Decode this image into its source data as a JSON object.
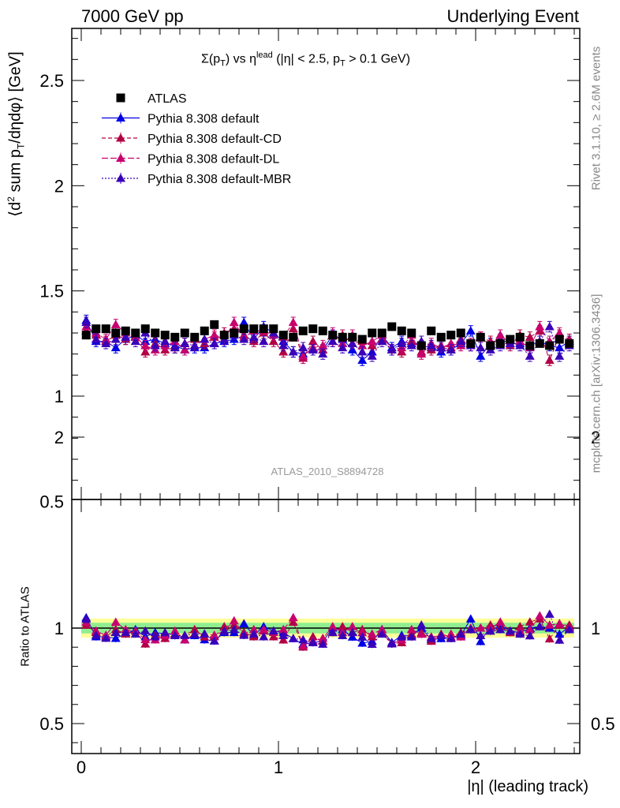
{
  "header": {
    "left": "7000 GeV pp",
    "right": "Underlying Event"
  },
  "side_labels": {
    "rivet": "Rivet 3.1.10, ≥ 2.6M events",
    "mcplots": "mcplots.cern.ch [arXiv:1306.3436]"
  },
  "colors": {
    "atlas": "#000000",
    "default": "#0000e6",
    "cd": "#b30045",
    "dl": "#c8006e",
    "mbr": "#3a00b8",
    "band_inner": "#90ee90",
    "band_outer": "#ffff99"
  },
  "chart_data": [
    {
      "type": "scatter",
      "panel": "main",
      "title": "Σ(p_T) vs η^lead (|η| < 2.5, p_T > 0.1 GeV)",
      "xlabel": "|η| (leading track)",
      "ylabel": "⟨d² sum p_T/dηdφ⟩ [GeV]",
      "watermark": "ATLAS_2010_S8894728",
      "xlim": [
        -0.05,
        2.55
      ],
      "ylim": [
        0.5,
        2.75
      ],
      "x_ticks": [
        "0",
        "1",
        "2"
      ],
      "y_ticks": [
        "0.5",
        "1",
        "1.5",
        "2",
        "2.5"
      ],
      "legend_position": "top-left",
      "x": [
        0.025,
        0.075,
        0.125,
        0.175,
        0.225,
        0.275,
        0.325,
        0.375,
        0.425,
        0.475,
        0.525,
        0.575,
        0.625,
        0.675,
        0.725,
        0.775,
        0.825,
        0.875,
        0.925,
        0.975,
        1.025,
        1.075,
        1.125,
        1.175,
        1.225,
        1.275,
        1.325,
        1.375,
        1.425,
        1.475,
        1.525,
        1.575,
        1.625,
        1.675,
        1.725,
        1.775,
        1.825,
        1.875,
        1.925,
        1.975,
        2.025,
        2.075,
        2.125,
        2.175,
        2.225,
        2.275,
        2.325,
        2.375,
        2.425,
        2.475
      ],
      "series": [
        {
          "name": "ATLAS",
          "style": "atlas",
          "values": [
            1.29,
            1.32,
            1.32,
            1.3,
            1.31,
            1.3,
            1.32,
            1.3,
            1.29,
            1.28,
            1.3,
            1.28,
            1.31,
            1.34,
            1.29,
            1.3,
            1.32,
            1.32,
            1.32,
            1.32,
            1.29,
            1.28,
            1.31,
            1.32,
            1.31,
            1.29,
            1.28,
            1.28,
            1.27,
            1.3,
            1.3,
            1.33,
            1.31,
            1.3,
            1.24,
            1.31,
            1.28,
            1.29,
            1.3,
            1.25,
            1.28,
            1.24,
            1.25,
            1.27,
            1.28,
            1.24,
            1.25,
            1.24,
            1.27,
            1.25
          ]
        },
        {
          "name": "Pythia 8.308 default",
          "style": "default",
          "values": [
            1.36,
            1.26,
            1.26,
            1.23,
            1.27,
            1.29,
            1.26,
            1.27,
            1.25,
            1.24,
            1.22,
            1.23,
            1.23,
            1.25,
            1.26,
            1.27,
            1.35,
            1.27,
            1.33,
            1.3,
            1.26,
            1.21,
            1.2,
            1.22,
            1.22,
            1.29,
            1.27,
            1.22,
            1.17,
            1.21,
            1.29,
            1.23,
            1.26,
            1.25,
            1.24,
            1.23,
            1.21,
            1.22,
            1.25,
            1.31,
            1.19,
            1.25,
            1.27,
            1.25,
            1.25,
            1.24,
            1.26,
            1.24,
            1.23,
            1.26
          ]
        },
        {
          "name": "Pythia 8.308 default-CD",
          "style": "cd",
          "values": [
            1.31,
            1.29,
            1.26,
            1.29,
            1.27,
            1.28,
            1.21,
            1.25,
            1.22,
            1.23,
            1.25,
            1.27,
            1.25,
            1.28,
            1.3,
            1.32,
            1.29,
            1.26,
            1.3,
            1.26,
            1.21,
            1.32,
            1.18,
            1.26,
            1.22,
            1.26,
            1.29,
            1.25,
            1.26,
            1.24,
            1.27,
            1.22,
            1.21,
            1.26,
            1.21,
            1.22,
            1.24,
            1.23,
            1.27,
            1.24,
            1.28,
            1.26,
            1.26,
            1.24,
            1.29,
            1.28,
            1.31,
            1.17,
            1.29,
            1.27
          ]
        },
        {
          "name": "Pythia 8.308 default-DL",
          "style": "dl",
          "values": [
            1.33,
            1.3,
            1.27,
            1.34,
            1.3,
            1.28,
            1.24,
            1.22,
            1.24,
            1.26,
            1.22,
            1.24,
            1.27,
            1.29,
            1.27,
            1.35,
            1.28,
            1.31,
            1.31,
            1.29,
            1.28,
            1.35,
            1.19,
            1.23,
            1.24,
            1.3,
            1.25,
            1.29,
            1.24,
            1.26,
            1.29,
            1.22,
            1.23,
            1.29,
            1.2,
            1.25,
            1.23,
            1.25,
            1.24,
            1.25,
            1.28,
            1.24,
            1.29,
            1.25,
            1.26,
            1.23,
            1.33,
            1.26,
            1.3,
            1.25
          ]
        },
        {
          "name": "Pythia 8.308 default-MBR",
          "style": "mbr",
          "values": [
            1.35,
            1.27,
            1.25,
            1.27,
            1.28,
            1.26,
            1.3,
            1.24,
            1.26,
            1.23,
            1.25,
            1.24,
            1.27,
            1.25,
            1.27,
            1.29,
            1.27,
            1.28,
            1.26,
            1.3,
            1.24,
            1.21,
            1.23,
            1.22,
            1.2,
            1.26,
            1.23,
            1.25,
            1.21,
            1.19,
            1.26,
            1.22,
            1.25,
            1.24,
            1.26,
            1.24,
            1.23,
            1.22,
            1.26,
            1.24,
            1.23,
            1.22,
            1.24,
            1.25,
            1.24,
            1.19,
            1.26,
            1.33,
            1.19,
            1.24
          ]
        }
      ]
    },
    {
      "type": "scatter",
      "panel": "ratio",
      "ylabel": "Ratio to ATLAS",
      "xlim": [
        -0.05,
        2.55
      ],
      "ylim": [
        0.35,
        2.25
      ],
      "y_ticks": [
        "0.5",
        "1",
        "2"
      ],
      "reference": 1,
      "band_inner_halfwidth": 0.028,
      "band_outer_halfwidth": 0.05
    }
  ]
}
